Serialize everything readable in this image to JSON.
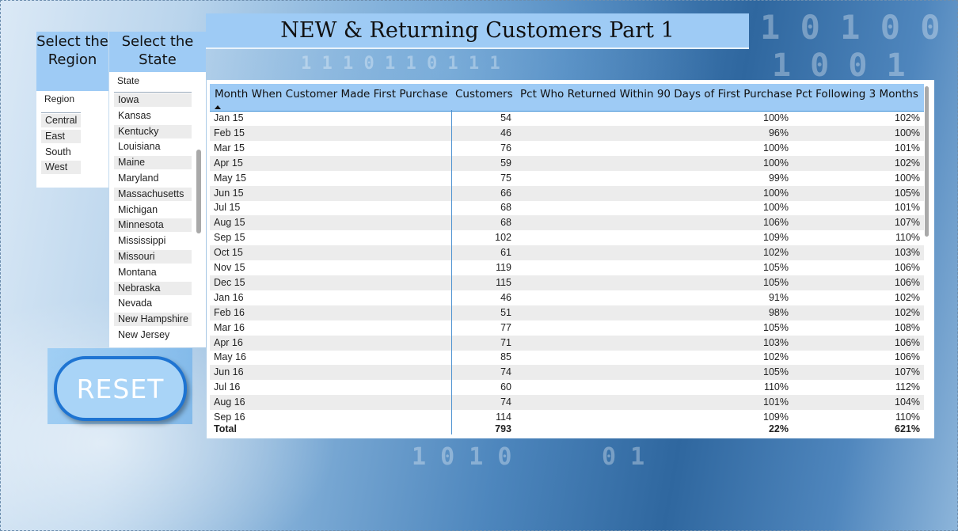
{
  "title": "NEW & Returning Customers Part 1",
  "region_slicer": {
    "heading": "Select the Region",
    "field_label": "Region",
    "items": [
      "Central",
      "East",
      "South",
      "West"
    ]
  },
  "state_slicer": {
    "heading": "Select the State",
    "field_label": "State",
    "items": [
      "Iowa",
      "Kansas",
      "Kentucky",
      "Louisiana",
      "Maine",
      "Maryland",
      "Massachusetts",
      "Michigan",
      "Minnesota",
      "Mississippi",
      "Missouri",
      "Montana",
      "Nebraska",
      "Nevada",
      "New Hampshire",
      "New Jersey"
    ]
  },
  "reset_label": "RESET",
  "table": {
    "columns": [
      "Month When Customer Made First Purchase",
      "Customers",
      "Pct Who Returned Within 90 Days of First Purchase",
      "Pct Following 3 Months"
    ],
    "rows": [
      [
        "Jan 15",
        "54",
        "100%",
        "102%"
      ],
      [
        "Feb 15",
        "46",
        "96%",
        "100%"
      ],
      [
        "Mar 15",
        "76",
        "100%",
        "101%"
      ],
      [
        "Apr 15",
        "59",
        "100%",
        "102%"
      ],
      [
        "May 15",
        "75",
        "99%",
        "100%"
      ],
      [
        "Jun 15",
        "66",
        "100%",
        "105%"
      ],
      [
        "Jul 15",
        "68",
        "100%",
        "101%"
      ],
      [
        "Aug 15",
        "68",
        "106%",
        "107%"
      ],
      [
        "Sep 15",
        "102",
        "109%",
        "110%"
      ],
      [
        "Oct 15",
        "61",
        "102%",
        "103%"
      ],
      [
        "Nov 15",
        "119",
        "105%",
        "106%"
      ],
      [
        "Dec 15",
        "115",
        "105%",
        "106%"
      ],
      [
        "Jan 16",
        "46",
        "91%",
        "102%"
      ],
      [
        "Feb 16",
        "51",
        "98%",
        "102%"
      ],
      [
        "Mar 16",
        "77",
        "105%",
        "108%"
      ],
      [
        "Apr 16",
        "71",
        "103%",
        "106%"
      ],
      [
        "May 16",
        "85",
        "102%",
        "106%"
      ],
      [
        "Jun 16",
        "74",
        "105%",
        "107%"
      ],
      [
        "Jul 16",
        "60",
        "110%",
        "112%"
      ],
      [
        "Aug 16",
        "74",
        "101%",
        "104%"
      ],
      [
        "Sep 16",
        "114",
        "109%",
        "110%"
      ]
    ],
    "total": [
      "Total",
      "793",
      "22%",
      "621%"
    ]
  },
  "colors": {
    "header_fill": "#9ecbf5",
    "reset_border": "#1e74d2",
    "row_shade": "#ececec"
  }
}
